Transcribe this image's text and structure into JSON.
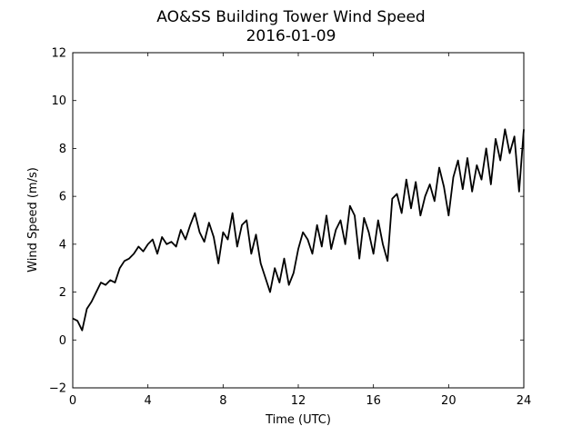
{
  "chart_data": {
    "type": "line",
    "title": "AO&SS Building Tower Wind Speed",
    "subtitle": "2016-01-09",
    "xlabel": "Time (UTC)",
    "ylabel": "Wind Speed (m/s)",
    "x": [
      0,
      0.25,
      0.5,
      0.75,
      1,
      1.25,
      1.5,
      1.75,
      2,
      2.25,
      2.5,
      2.75,
      3,
      3.25,
      3.5,
      3.75,
      4,
      4.25,
      4.5,
      4.75,
      5,
      5.25,
      5.5,
      5.75,
      6,
      6.25,
      6.5,
      6.75,
      7,
      7.25,
      7.5,
      7.75,
      8,
      8.25,
      8.5,
      8.75,
      9,
      9.25,
      9.5,
      9.75,
      10,
      10.25,
      10.5,
      10.75,
      11,
      11.25,
      11.5,
      11.75,
      12,
      12.25,
      12.5,
      12.75,
      13,
      13.25,
      13.5,
      13.75,
      14,
      14.25,
      14.5,
      14.75,
      15,
      15.25,
      15.5,
      15.75,
      16,
      16.25,
      16.5,
      16.75,
      17,
      17.25,
      17.5,
      17.75,
      18,
      18.25,
      18.5,
      18.75,
      19,
      19.25,
      19.5,
      19.75,
      20,
      20.25,
      20.5,
      20.75,
      21,
      21.25,
      21.5,
      21.75,
      22,
      22.25,
      22.5,
      22.75,
      23,
      23.25,
      23.5,
      23.75,
      24
    ],
    "series": [
      {
        "color": "#000000",
        "values": [
          0.9,
          0.8,
          0.4,
          1.3,
          1.6,
          2.0,
          2.4,
          2.3,
          2.5,
          2.4,
          3.0,
          3.3,
          3.4,
          3.6,
          3.9,
          3.7,
          4.0,
          4.2,
          3.6,
          4.3,
          4.0,
          4.1,
          3.9,
          4.6,
          4.2,
          4.8,
          5.3,
          4.5,
          4.1,
          4.9,
          4.3,
          3.2,
          4.5,
          4.2,
          5.3,
          3.9,
          4.8,
          5.0,
          3.6,
          4.4,
          3.2,
          2.6,
          2.0,
          3.0,
          2.4,
          3.4,
          2.3,
          2.8,
          3.8,
          4.5,
          4.2,
          3.6,
          4.8,
          3.9,
          5.2,
          3.8,
          4.6,
          5.0,
          4.0,
          5.6,
          5.2,
          3.4,
          5.1,
          4.5,
          3.6,
          5.0,
          4.0,
          3.3,
          5.9,
          6.1,
          5.3,
          6.7,
          5.5,
          6.6,
          5.2,
          6.0,
          6.5,
          5.8,
          7.2,
          6.4,
          5.2,
          6.8,
          7.5,
          6.3,
          7.6,
          6.2,
          7.3,
          6.7,
          8.0,
          6.5,
          8.4,
          7.5,
          8.8,
          7.8,
          8.5,
          6.2,
          8.8
        ]
      }
    ],
    "xlim": [
      0,
      24
    ],
    "xticks": [
      0,
      4,
      8,
      12,
      16,
      20,
      24
    ],
    "ylim": [
      -2,
      12
    ],
    "yticks": [
      {
        "value": -2,
        "label": "−2"
      },
      0,
      2,
      4,
      6,
      8,
      10,
      12
    ],
    "grid": false
  }
}
